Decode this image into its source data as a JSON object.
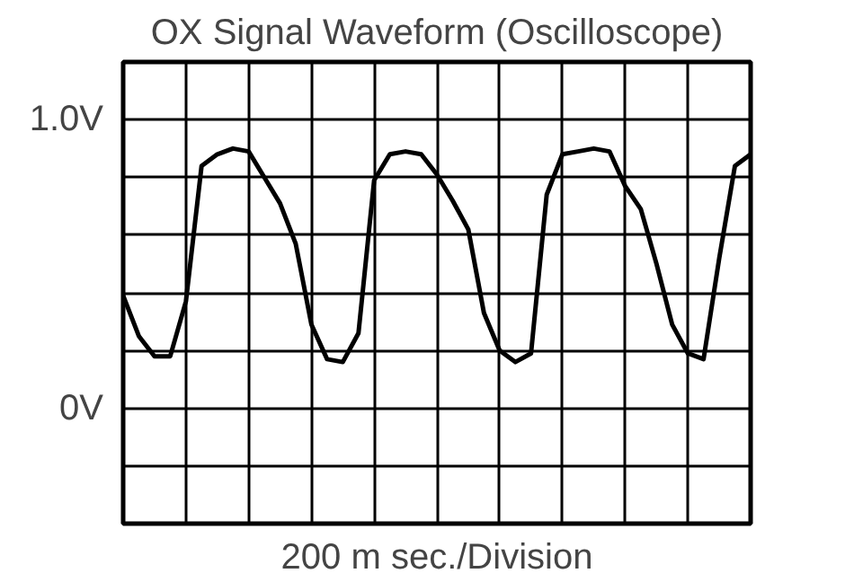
{
  "chart_data": {
    "type": "line",
    "title": "OX Signal Waveform (Oscilloscope)",
    "xlabel": "200 m sec./Division",
    "categories": [
      null,
      null,
      null,
      null,
      null,
      null,
      null,
      null,
      null,
      null,
      null,
      null,
      null,
      null,
      null,
      null,
      null,
      null,
      null,
      null,
      null,
      null,
      null,
      null,
      null,
      null,
      null,
      null,
      null,
      null,
      null,
      null,
      null,
      null,
      null,
      null,
      null,
      null,
      null,
      null,
      null
    ],
    "series": [
      {
        "color": "#000000",
        "values": [
          0.39,
          0.25,
          0.18,
          0.18,
          0.37,
          0.84,
          0.88,
          0.9,
          0.89,
          0.8,
          0.71,
          0.57,
          0.29,
          0.17,
          0.16,
          0.26,
          0.79,
          0.88,
          0.89,
          0.88,
          0.81,
          0.72,
          0.62,
          0.33,
          0.2,
          0.16,
          0.19,
          0.74,
          0.88,
          0.89,
          0.9,
          0.89,
          0.77,
          0.69,
          0.5,
          0.29,
          0.19,
          0.17,
          0.52,
          0.84,
          0.88
        ]
      }
    ],
    "ylim": [
      -0.4,
      1.2
    ],
    "yticks": [
      {
        "value": -0.4,
        "label": null
      },
      {
        "value": -0.2,
        "label": null
      },
      {
        "value": 0,
        "label": "0V"
      },
      {
        "value": 0.2,
        "label": null
      },
      {
        "value": 0.4,
        "label": null
      },
      {
        "value": 0.6,
        "label": null
      },
      {
        "value": 0.8,
        "label": null
      },
      {
        "value": 1.0,
        "label": "1.0V"
      },
      {
        "value": 1.2,
        "label": null
      }
    ],
    "grid": true,
    "tick_labels": "y",
    "line_style": "solid"
  }
}
